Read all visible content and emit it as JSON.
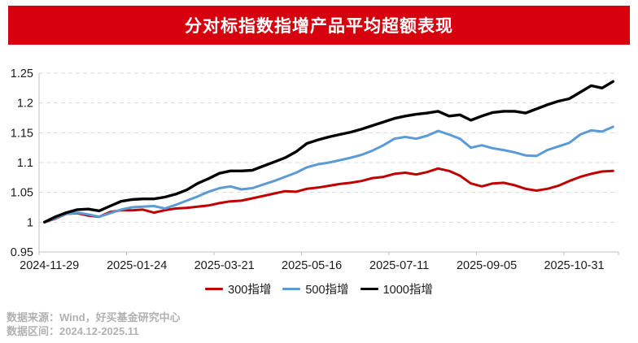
{
  "title": "分对标指数指增产品平均超额表现",
  "banner_color": "#D7000F",
  "footer": {
    "source": "数据来源：Wind，好买基金研究中心",
    "range": "数据区间：2024.12-2025.11"
  },
  "chart_data": {
    "type": "line",
    "title": "分对标指数指增产品平均超额表现",
    "xlabel": "",
    "ylabel": "",
    "ylim": [
      0.95,
      1.25
    ],
    "y_ticks": [
      "0.95",
      "1",
      "1.05",
      "1.1",
      "1.15",
      "1.2",
      "1.25"
    ],
    "grid": "horizontal-dashed",
    "legend_position": "bottom",
    "x_frequency": "weekly",
    "x_labels": [
      "2024-11-29",
      "2025-01-24",
      "2025-03-21",
      "2025-05-16",
      "2025-07-11",
      "2025-09-05",
      "2025-10-31"
    ],
    "x_label_indices": [
      0,
      8,
      16,
      24,
      32,
      40,
      48
    ],
    "series": [
      {
        "name": "300指增",
        "color": "#C00000",
        "values": [
          1.0,
          1.006,
          1.014,
          1.015,
          1.011,
          1.009,
          1.017,
          1.02,
          1.02,
          1.021,
          1.016,
          1.02,
          1.023,
          1.024,
          1.026,
          1.028,
          1.032,
          1.035,
          1.036,
          1.04,
          1.044,
          1.048,
          1.052,
          1.051,
          1.056,
          1.058,
          1.061,
          1.064,
          1.066,
          1.069,
          1.074,
          1.076,
          1.081,
          1.083,
          1.08,
          1.084,
          1.09,
          1.086,
          1.078,
          1.065,
          1.06,
          1.065,
          1.066,
          1.062,
          1.056,
          1.053,
          1.056,
          1.061,
          1.069,
          1.076,
          1.081,
          1.085,
          1.086
        ]
      },
      {
        "name": "500指增",
        "color": "#5B9BD5",
        "values": [
          1.0,
          1.007,
          1.014,
          1.016,
          1.013,
          1.009,
          1.015,
          1.021,
          1.025,
          1.026,
          1.027,
          1.023,
          1.029,
          1.036,
          1.043,
          1.051,
          1.057,
          1.06,
          1.055,
          1.057,
          1.063,
          1.069,
          1.076,
          1.083,
          1.092,
          1.097,
          1.1,
          1.104,
          1.108,
          1.113,
          1.12,
          1.129,
          1.14,
          1.143,
          1.14,
          1.145,
          1.153,
          1.147,
          1.14,
          1.125,
          1.129,
          1.124,
          1.121,
          1.117,
          1.112,
          1.111,
          1.121,
          1.127,
          1.133,
          1.147,
          1.154,
          1.152,
          1.16
        ]
      },
      {
        "name": "1000指增",
        "color": "#000000",
        "values": [
          1.0,
          1.009,
          1.016,
          1.021,
          1.022,
          1.019,
          1.027,
          1.035,
          1.038,
          1.039,
          1.039,
          1.042,
          1.047,
          1.054,
          1.065,
          1.073,
          1.082,
          1.086,
          1.086,
          1.087,
          1.094,
          1.101,
          1.108,
          1.118,
          1.132,
          1.138,
          1.143,
          1.147,
          1.151,
          1.156,
          1.162,
          1.168,
          1.174,
          1.178,
          1.181,
          1.183,
          1.186,
          1.178,
          1.18,
          1.171,
          1.178,
          1.184,
          1.186,
          1.186,
          1.183,
          1.19,
          1.197,
          1.203,
          1.207,
          1.218,
          1.229,
          1.225,
          1.236
        ]
      }
    ]
  }
}
